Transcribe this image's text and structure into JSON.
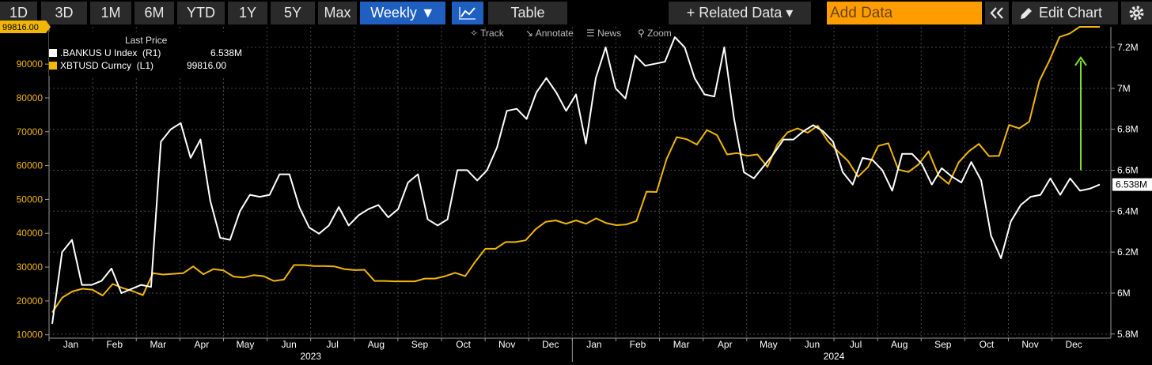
{
  "toolbar": {
    "periods": [
      "1D",
      "3D",
      "1M",
      "6M",
      "YTD",
      "1Y",
      "5Y",
      "Max"
    ],
    "frequency": "Weekly ▼",
    "chart_icon": "line-chart-icon",
    "table": "Table",
    "related": "+ Related Data ▾",
    "add_data_placeholder": "Add Data",
    "collapse_icon": "double-chevron-left-icon",
    "edit_chart": "Edit Chart",
    "edit_icon": "pencil-icon",
    "settings_icon": "gear-icon"
  },
  "subbar": {
    "track": "Track",
    "annotate": "Annotate",
    "news": "News",
    "zoom": "Zoom"
  },
  "legend": {
    "header": "Last Price",
    "items": [
      {
        "name": ".BANKUS U Index  (R1)",
        "value": "6.538M",
        "color": "#ffffff"
      },
      {
        "name": "XBTUSD Curncy  (L1)",
        "value": "99816.00",
        "color": "#f2b705"
      }
    ]
  },
  "chart_data": {
    "type": "line",
    "x_labels": [
      "Jan",
      "Feb",
      "Mar",
      "Apr",
      "May",
      "Jun",
      "Jul",
      "Aug",
      "Sep",
      "Oct",
      "Nov",
      "Dec",
      "Jan",
      "Feb",
      "Mar",
      "Apr",
      "May",
      "Jun",
      "Jul",
      "Aug",
      "Sep",
      "Oct",
      "Nov",
      "Dec"
    ],
    "year_labels": [
      "2023",
      "2024"
    ],
    "left_axis": {
      "ticks": [
        "10000",
        "20000",
        "30000",
        "40000",
        "50000",
        "60000",
        "70000",
        "80000",
        "90000"
      ],
      "ylim": [
        9000,
        101000
      ]
    },
    "right_axis": {
      "ticks": [
        "5.8M",
        "6M",
        "6.2M",
        "6.4M",
        "6.6M",
        "6.8M",
        "7M",
        "7.2M"
      ],
      "ylim": [
        5.78,
        7.3
      ]
    },
    "last_value_tags": {
      "left": "99816.00",
      "right": "6.538M"
    },
    "annotation": {
      "type": "arrow",
      "color": "#7fe02a",
      "from": 6.6,
      "to": 7.15,
      "axis": "right"
    },
    "series": [
      {
        "name": "XBTUSD Curncy",
        "axis": "left",
        "color": "#f2b705",
        "values": [
          16600,
          21000,
          22800,
          23600,
          23300,
          21600,
          25000,
          23800,
          22900,
          21700,
          28200,
          27800,
          28000,
          28200,
          30200,
          27900,
          29400,
          29000,
          27200,
          26900,
          27600,
          27300,
          25900,
          26300,
          30600,
          30600,
          30300,
          30300,
          30200,
          29400,
          29100,
          29200,
          25900,
          25900,
          25800,
          25800,
          25800,
          26600,
          26600,
          27300,
          28300,
          27300,
          31600,
          35400,
          35400,
          37400,
          37400,
          37900,
          41200,
          43400,
          43800,
          42800,
          43800,
          42800,
          44400,
          43000,
          42400,
          42600,
          43600,
          52300,
          52200,
          62000,
          68400,
          67800,
          66200,
          70500,
          69000,
          63300,
          63700,
          62900,
          63300,
          59600,
          66300,
          69800,
          71000,
          69700,
          71800,
          67200,
          64200,
          61400,
          56700,
          59600,
          65800,
          66600,
          58800,
          58100,
          60300,
          64200,
          57000,
          54600,
          61000,
          64200,
          66400,
          62800,
          62900,
          72000,
          71000,
          73000,
          85000,
          91000,
          98000,
          99000,
          101000,
          101000,
          101000
        ]
      },
      {
        "name": ".BANKUS U Index",
        "axis": "right",
        "color": "#ffffff",
        "values": [
          5.85,
          6.2,
          6.26,
          6.04,
          6.04,
          6.06,
          6.12,
          6.0,
          6.02,
          6.04,
          6.03,
          6.74,
          6.8,
          6.83,
          6.66,
          6.75,
          6.45,
          6.27,
          6.26,
          6.4,
          6.48,
          6.47,
          6.48,
          6.58,
          6.58,
          6.42,
          6.32,
          6.29,
          6.33,
          6.42,
          6.33,
          6.38,
          6.41,
          6.43,
          6.37,
          6.41,
          6.54,
          6.58,
          6.36,
          6.33,
          6.36,
          6.6,
          6.6,
          6.55,
          6.6,
          6.71,
          6.89,
          6.9,
          6.85,
          6.98,
          7.05,
          6.98,
          6.89,
          6.97,
          6.73,
          7.05,
          7.2,
          7.0,
          6.95,
          7.16,
          7.11,
          7.12,
          7.13,
          7.25,
          7.2,
          7.05,
          6.97,
          6.96,
          7.2,
          6.85,
          6.59,
          6.56,
          6.62,
          6.68,
          6.75,
          6.75,
          6.79,
          6.82,
          6.79,
          6.74,
          6.59,
          6.53,
          6.66,
          6.65,
          6.6,
          6.5,
          6.68,
          6.68,
          6.63,
          6.53,
          6.61,
          6.57,
          6.54,
          6.64,
          6.55,
          6.28,
          6.17,
          6.35,
          6.43,
          6.47,
          6.48,
          6.56,
          6.48,
          6.56,
          6.5,
          6.51,
          6.53
        ]
      }
    ]
  }
}
